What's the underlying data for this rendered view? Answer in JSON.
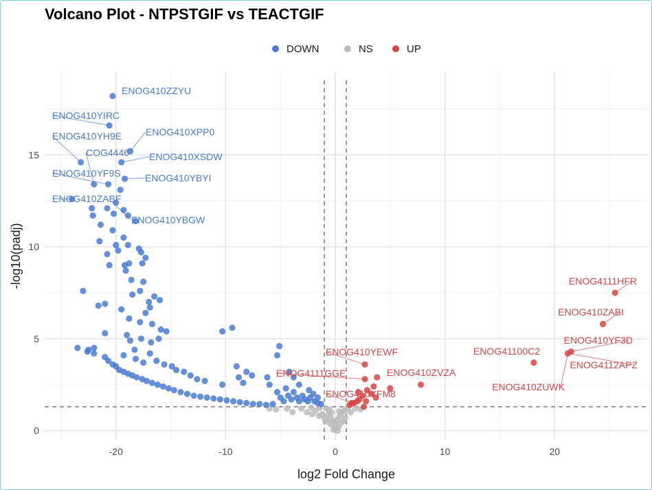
{
  "chart_data": {
    "type": "scatter",
    "title": "Volcano Plot - NTPSTGIF vs TEACTGIF",
    "xlabel": "log2 Fold Change",
    "ylabel": "-log10(padj)",
    "xlim": [
      -26.5,
      28.5
    ],
    "ylim": [
      -0.5,
      19.5
    ],
    "x_ticks": [
      -20,
      -10,
      0,
      10,
      20
    ],
    "y_ticks": [
      0,
      5,
      10,
      15
    ],
    "x_tick_labels": [
      "-20",
      "-10",
      "0",
      "10",
      "20"
    ],
    "y_tick_labels": [
      "0",
      "5",
      "10",
      "15"
    ],
    "grid": true,
    "legend_position": "top",
    "thresholds": {
      "log2fc": [
        -1,
        1
      ],
      "padj_neglog10": 1.3
    },
    "series": [
      {
        "name": "DOWN",
        "color": "#4a7bd0",
        "points": [
          [
            -20.3,
            18.2
          ],
          [
            -20.6,
            16.6
          ],
          [
            -23.2,
            14.6
          ],
          [
            -24.0,
            12.6
          ],
          [
            -19.5,
            14.6
          ],
          [
            -18.7,
            15.2
          ],
          [
            -19.2,
            13.7
          ],
          [
            -19.6,
            13.1
          ],
          [
            -20.7,
            13.4
          ],
          [
            -20.8,
            12.1
          ],
          [
            -20.2,
            11.8
          ],
          [
            -18.2,
            11.4
          ],
          [
            -22.0,
            13.4
          ],
          [
            -22.2,
            12.1
          ],
          [
            -20.0,
            12.4
          ],
          [
            -19.3,
            12.0
          ],
          [
            -18.9,
            11.7
          ],
          [
            -22.1,
            11.7
          ],
          [
            -21.4,
            11.2
          ],
          [
            -20.3,
            10.9
          ],
          [
            -21.5,
            10.3
          ],
          [
            -20.0,
            10.1
          ],
          [
            -19.3,
            10.5
          ],
          [
            -18.9,
            10.1
          ],
          [
            -17.9,
            9.9
          ],
          [
            -17.7,
            9.7
          ],
          [
            -17.3,
            9.4
          ],
          [
            -17.6,
            9.1
          ],
          [
            -18.8,
            9.1
          ],
          [
            -19.8,
            9.8
          ],
          [
            -20.8,
            9.6
          ],
          [
            -20.6,
            9.0
          ],
          [
            -19.2,
            9.0
          ],
          [
            -19.1,
            8.7
          ],
          [
            -18.6,
            8.2
          ],
          [
            -17.5,
            8.1
          ],
          [
            -17.8,
            7.6
          ],
          [
            -16.5,
            7.3
          ],
          [
            -16.0,
            7.1
          ],
          [
            -17.0,
            7.0
          ],
          [
            -18.5,
            7.4
          ],
          [
            -19.5,
            6.6
          ],
          [
            -21.0,
            6.9
          ],
          [
            -23.0,
            7.6
          ],
          [
            -16.9,
            6.7
          ],
          [
            -17.3,
            6.4
          ],
          [
            -18.8,
            6.1
          ],
          [
            -17.8,
            5.9
          ],
          [
            -16.7,
            5.8
          ],
          [
            -15.9,
            5.5
          ],
          [
            -15.4,
            5.4
          ],
          [
            -16.1,
            5.0
          ],
          [
            -16.8,
            4.8
          ],
          [
            -17.7,
            5.0
          ],
          [
            -18.7,
            4.9
          ],
          [
            -18.3,
            4.4
          ],
          [
            -19.0,
            5.2
          ],
          [
            -21.0,
            5.3
          ],
          [
            -21.6,
            6.8
          ],
          [
            -22.0,
            4.5
          ],
          [
            -22.6,
            4.3
          ],
          [
            -19.3,
            4.1
          ],
          [
            -18.2,
            3.9
          ],
          [
            -17.5,
            3.7
          ],
          [
            -16.9,
            4.2
          ],
          [
            -16.3,
            3.8
          ],
          [
            -15.6,
            3.6
          ],
          [
            -14.9,
            3.5
          ],
          [
            -14.5,
            3.3
          ],
          [
            -13.8,
            3.2
          ],
          [
            -13.2,
            3.0
          ],
          [
            -12.6,
            2.8
          ],
          [
            -11.9,
            2.7
          ],
          [
            -10.3,
            2.5
          ],
          [
            -9.4,
            5.6
          ],
          [
            -10.3,
            5.4
          ],
          [
            -8.1,
            3.2
          ],
          [
            -7.6,
            3.0
          ],
          [
            -8.4,
            2.6
          ],
          [
            -5.1,
            4.6
          ],
          [
            -5.3,
            4.1
          ],
          [
            -4.2,
            3.2
          ],
          [
            -3.8,
            2.9
          ],
          [
            -3.3,
            2.5
          ],
          [
            -2.4,
            2.2
          ],
          [
            -2.0,
            2.0
          ],
          [
            -1.6,
            1.8
          ],
          [
            -23.5,
            4.5
          ],
          [
            -22.5,
            4.4
          ],
          [
            -22.0,
            4.2
          ],
          [
            -21.0,
            4.0
          ],
          [
            -20.7,
            3.8
          ],
          [
            -20.3,
            3.6
          ],
          [
            -20.0,
            3.5
          ],
          [
            -19.7,
            3.3
          ],
          [
            -19.3,
            3.2
          ],
          [
            -18.9,
            3.1
          ],
          [
            -18.5,
            3.0
          ],
          [
            -18.1,
            2.9
          ],
          [
            -17.6,
            2.8
          ],
          [
            -17.2,
            2.7
          ],
          [
            -16.7,
            2.6
          ],
          [
            -16.2,
            2.5
          ],
          [
            -15.7,
            2.4
          ],
          [
            -15.2,
            2.3
          ],
          [
            -14.7,
            2.2
          ],
          [
            -14.1,
            2.1
          ],
          [
            -13.5,
            2.0
          ],
          [
            -12.9,
            1.9
          ],
          [
            -12.3,
            1.85
          ],
          [
            -11.7,
            1.8
          ],
          [
            -11.1,
            1.75
          ],
          [
            -10.5,
            1.7
          ],
          [
            -9.9,
            1.65
          ],
          [
            -9.3,
            1.6
          ],
          [
            -8.7,
            1.55
          ],
          [
            -8.1,
            1.5
          ],
          [
            -7.5,
            1.45
          ],
          [
            -6.9,
            1.45
          ],
          [
            -6.3,
            1.4
          ],
          [
            -5.7,
            1.45
          ],
          [
            -5.3,
            2.1
          ],
          [
            -5.0,
            1.8
          ],
          [
            -4.7,
            1.6
          ],
          [
            -4.5,
            2.3
          ],
          [
            -4.3,
            1.9
          ],
          [
            -4.0,
            1.7
          ],
          [
            -3.8,
            2.1
          ],
          [
            -3.5,
            1.8
          ],
          [
            -3.3,
            1.6
          ],
          [
            -3.0,
            1.9
          ],
          [
            -2.8,
            1.7
          ],
          [
            -2.5,
            1.6
          ],
          [
            -2.3,
            1.8
          ],
          [
            -1.9,
            1.6
          ],
          [
            -1.6,
            1.5
          ],
          [
            -1.3,
            1.45
          ],
          [
            -6.0,
            2.5
          ],
          [
            -6.2,
            2.9
          ],
          [
            -9.0,
            3.5
          ],
          [
            -8.8,
            2.9
          ]
        ]
      },
      {
        "name": "NS",
        "color": "#bcbcbc",
        "points": [
          [
            -6.0,
            1.2
          ],
          [
            -5.4,
            1.15
          ],
          [
            -4.4,
            1.2
          ],
          [
            -3.9,
            1.0
          ],
          [
            -3.1,
            1.2
          ],
          [
            -2.6,
            1.0
          ],
          [
            -2.1,
            0.9
          ],
          [
            -1.8,
            1.1
          ],
          [
            -1.5,
            0.8
          ],
          [
            -1.2,
            0.9
          ],
          [
            -1.0,
            0.7
          ],
          [
            -0.9,
            0.5
          ],
          [
            -0.8,
            1.2
          ],
          [
            -0.7,
            0.6
          ],
          [
            -0.6,
            0.9
          ],
          [
            -0.5,
            0.4
          ],
          [
            -0.4,
            0.7
          ],
          [
            -0.3,
            0.3
          ],
          [
            -0.2,
            0.5
          ],
          [
            -0.1,
            0.2
          ],
          [
            0.0,
            0.1
          ],
          [
            0.1,
            0.3
          ],
          [
            0.2,
            0.6
          ],
          [
            0.3,
            0.2
          ],
          [
            0.4,
            0.8
          ],
          [
            0.5,
            0.4
          ],
          [
            0.6,
            1.0
          ],
          [
            0.7,
            0.5
          ],
          [
            0.8,
            1.1
          ],
          [
            0.9,
            0.7
          ],
          [
            1.1,
            1.2
          ],
          [
            1.4,
            1.0
          ],
          [
            1.8,
            1.2
          ],
          [
            2.3,
            1.15
          ],
          [
            -2.2,
            1.25
          ],
          [
            -1.4,
            1.25
          ],
          [
            -0.35,
            1.0
          ],
          [
            0.35,
            1.05
          ],
          [
            0.2,
            0.0
          ],
          [
            -0.15,
            0.05
          ],
          [
            0.05,
            0.45
          ],
          [
            -0.55,
            1.15
          ]
        ]
      },
      {
        "name": "UP",
        "color": "#d64545",
        "points": [
          [
            25.5,
            7.5
          ],
          [
            24.4,
            5.8
          ],
          [
            21.5,
            4.3
          ],
          [
            21.2,
            4.2
          ],
          [
            18.1,
            3.7
          ],
          [
            7.8,
            2.5
          ],
          [
            5.0,
            2.3
          ],
          [
            3.8,
            2.9
          ],
          [
            3.7,
            1.8
          ],
          [
            3.5,
            2.4
          ],
          [
            2.9,
            2.2
          ],
          [
            2.8,
            1.6
          ],
          [
            2.7,
            3.6
          ],
          [
            2.7,
            2.8
          ],
          [
            2.5,
            1.9
          ],
          [
            2.2,
            1.7
          ],
          [
            2.0,
            1.6
          ],
          [
            1.7,
            1.5
          ],
          [
            1.5,
            1.5
          ],
          [
            1.3,
            1.4
          ],
          [
            2.1,
            2.1
          ],
          [
            2.6,
            1.3
          ],
          [
            3.3,
            2.0
          ]
        ]
      }
    ],
    "annotations": [
      {
        "text": "ENOG410ZZYU",
        "series": "DOWN",
        "x": -20.3,
        "y": 18.2
      },
      {
        "text": "ENOG410YIRC",
        "series": "DOWN",
        "x": -20.6,
        "y": 16.6
      },
      {
        "text": "ENOG410YH9E",
        "series": "DOWN",
        "x": -23.2,
        "y": 14.6
      },
      {
        "text": "ENOG410XPP0",
        "series": "DOWN",
        "x": -18.7,
        "y": 15.2
      },
      {
        "text": "COG4446",
        "series": "DOWN",
        "x": -22.0,
        "y": 13.4
      },
      {
        "text": "ENOG410XSDW",
        "series": "DOWN",
        "x": -19.5,
        "y": 14.6
      },
      {
        "text": "ENOG410YF9S",
        "series": "DOWN",
        "x": -20.7,
        "y": 13.4
      },
      {
        "text": "ENOG410YBYI",
        "series": "DOWN",
        "x": -19.2,
        "y": 13.7
      },
      {
        "text": "ENOG410ZABF",
        "series": "DOWN",
        "x": -24.0,
        "y": 12.6
      },
      {
        "text": "ENOG410YBGW",
        "series": "DOWN",
        "x": -20.3,
        "y": 12.4
      },
      {
        "text": "ENOG4111HFR",
        "series": "UP",
        "x": 25.5,
        "y": 7.5
      },
      {
        "text": "ENOG410ZABI",
        "series": "UP",
        "x": 24.4,
        "y": 5.8
      },
      {
        "text": "ENOG410YF3D",
        "series": "UP",
        "x": 21.5,
        "y": 4.3
      },
      {
        "text": "ENOG41100C2",
        "series": "UP",
        "x": 18.1,
        "y": 3.7
      },
      {
        "text": "ENOG4112APZ",
        "series": "UP",
        "x": 21.2,
        "y": 4.2
      },
      {
        "text": "ENOG410ZUWK",
        "series": "UP",
        "x": 21.2,
        "y": 4.2
      },
      {
        "text": "ENOG410YEWF",
        "series": "UP",
        "x": 2.7,
        "y": 3.6
      },
      {
        "text": "ENOG4111GGE",
        "series": "UP",
        "x": 2.7,
        "y": 2.8
      },
      {
        "text": "ENOG410ZVZA",
        "series": "UP",
        "x": 3.8,
        "y": 2.9
      },
      {
        "text": "ENOG410YFM8",
        "series": "UP",
        "x": 1.7,
        "y": 1.5
      }
    ]
  }
}
